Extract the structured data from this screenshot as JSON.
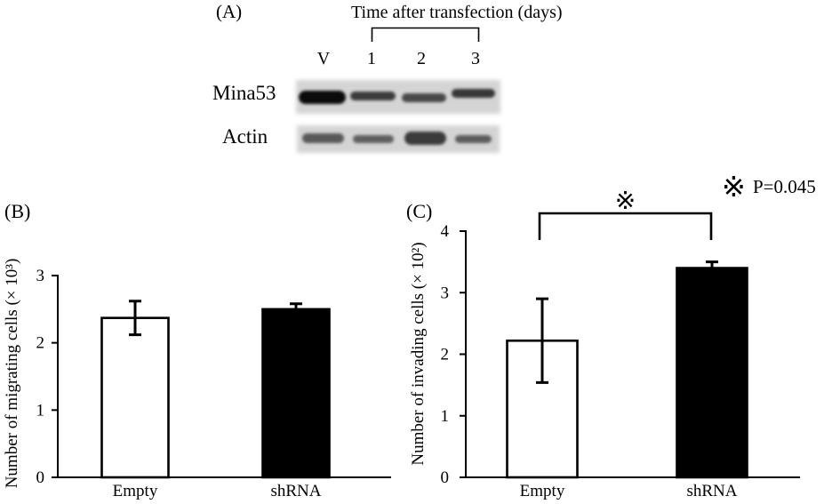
{
  "panel_a": {
    "label": "(A)",
    "time_header": "Time after transfection (days)",
    "lanes": [
      "V",
      "1",
      "2",
      "3"
    ],
    "rows": [
      {
        "label": "Mina53",
        "band_intensity": [
          0.95,
          0.72,
          0.66,
          0.74
        ]
      },
      {
        "label": "Actin",
        "band_intensity": [
          0.58,
          0.55,
          0.72,
          0.56
        ]
      }
    ]
  },
  "chart_data": [
    {
      "panel_label": "(B)",
      "type": "bar",
      "categories": [
        "Empty",
        "shRNA"
      ],
      "values": [
        2.37,
        2.5
      ],
      "errors": [
        0.25,
        0.08
      ],
      "ylabel": "Number of migrating cells (× 10³)",
      "ylim": [
        0,
        3
      ],
      "yticks": [
        0,
        1,
        2,
        3
      ],
      "bar_colors": [
        "#ffffff",
        "#000000"
      ],
      "grid": false
    },
    {
      "panel_label": "(C)",
      "type": "bar",
      "categories": [
        "Empty",
        "shRNA"
      ],
      "values": [
        2.22,
        3.4
      ],
      "errors": [
        0.68,
        0.1
      ],
      "ylabel": "Number of invading cells (× 10²)",
      "ylim": [
        0,
        4
      ],
      "yticks": [
        0,
        1,
        2,
        3,
        4
      ],
      "bar_colors": [
        "#ffffff",
        "#000000"
      ],
      "grid": false,
      "significance": {
        "pair": [
          0,
          1
        ],
        "symbol": "※"
      },
      "annotation": {
        "symbol": "※",
        "text": "P=0.045"
      }
    }
  ]
}
